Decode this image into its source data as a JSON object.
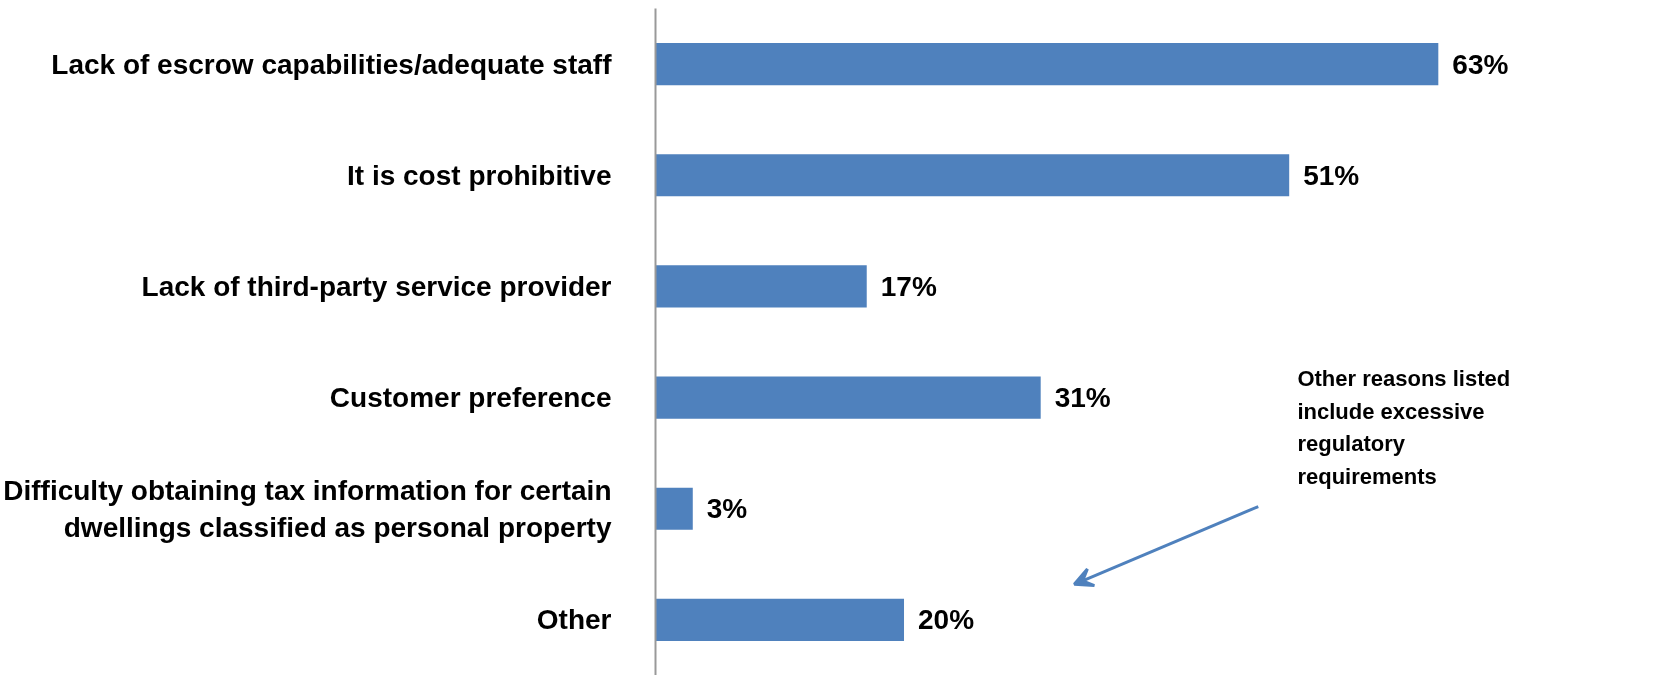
{
  "chart_data": {
    "type": "bar",
    "orientation": "horizontal",
    "categories": [
      "Lack of escrow capabilities/adequate staff",
      "It is cost prohibitive",
      "Lack of third-party service provider",
      "Customer preference",
      "Difficulty obtaining tax information for certain\ndwellings classified as personal property",
      "Other"
    ],
    "values": [
      63,
      51,
      17,
      31,
      3,
      20
    ],
    "value_labels": [
      "63%",
      "51%",
      "17%",
      "31%",
      "3%",
      "20%"
    ],
    "color": "#4f81bd",
    "annotations": [
      "Other reasons listed\ninclude excessive\nregulatory\nrequirements"
    ]
  }
}
